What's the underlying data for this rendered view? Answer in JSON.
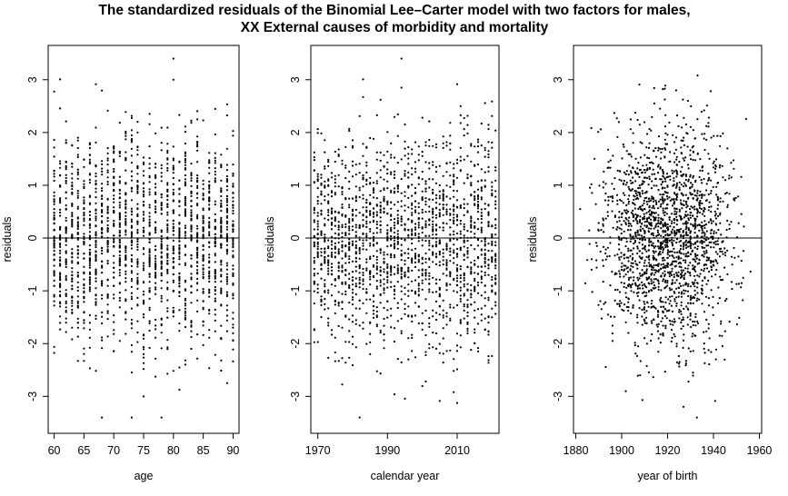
{
  "title": {
    "line1": "The standardized residuals of the Binomial Lee–Carter model with two factors for males,",
    "line2": "XX External causes of morbidity and mortality"
  },
  "colors": {
    "points": "#000000",
    "axes": "#000000",
    "background": "#ffffff"
  },
  "chart_data": [
    {
      "type": "scatter",
      "xlabel": "age",
      "ylabel": "residuals",
      "xlim": [
        59,
        91
      ],
      "ylim": [
        -3.7,
        3.65
      ],
      "xticks": [
        60,
        65,
        70,
        75,
        80,
        85,
        90
      ],
      "yticks": [
        -3,
        -2,
        -1,
        0,
        1,
        2,
        3
      ],
      "reference_line_y": 0,
      "grid": false,
      "point_count": 1891,
      "x_range": [
        60,
        90
      ],
      "residual_sd": 1.0,
      "x_step": 1
    },
    {
      "type": "scatter",
      "xlabel": "calendar year",
      "ylabel": "residuals",
      "xlim": [
        1968,
        2022
      ],
      "ylim": [
        -3.7,
        3.65
      ],
      "xticks": [
        1970,
        1990,
        2010
      ],
      "yticks": [
        -3,
        -2,
        -1,
        0,
        1,
        2,
        3
      ],
      "reference_line_y": 0,
      "grid": false,
      "point_count": 1891,
      "x_range": [
        1969,
        2021
      ],
      "residual_sd": 1.0,
      "x_step": 1
    },
    {
      "type": "scatter",
      "xlabel": "year of birth",
      "ylabel": "residuals",
      "xlim": [
        1879,
        1961
      ],
      "ylim": [
        -3.7,
        3.65
      ],
      "xticks": [
        1880,
        1900,
        1920,
        1940,
        1960
      ],
      "yticks": [
        -3,
        -2,
        -1,
        0,
        1,
        2,
        3
      ],
      "reference_line_y": 0,
      "grid": false,
      "point_count": 1891,
      "x_range": [
        1879,
        1961
      ],
      "residual_sd": 1.0,
      "x_step": 1
    }
  ]
}
